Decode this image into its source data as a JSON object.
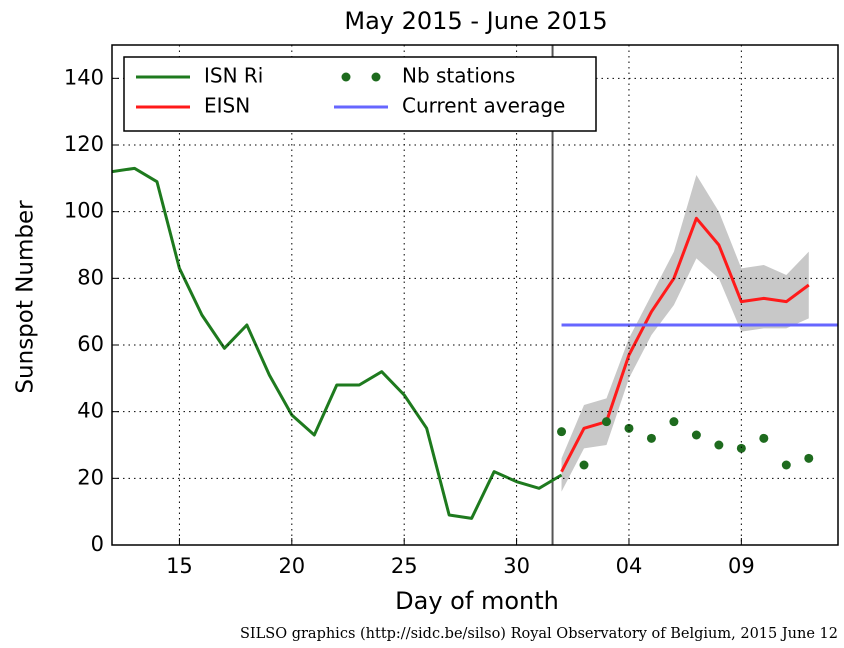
{
  "chart_data": {
    "type": "line",
    "title": "May 2015 - June 2015",
    "xlabel": "Day of month",
    "ylabel": "Sunspot Number",
    "footer": "SILSO graphics (http://sidc.be/silso) Royal Observatory of Belgium, 2015 June 12",
    "xlim": [
      12,
      44.3
    ],
    "ylim": [
      0,
      150
    ],
    "xticks": [
      15,
      20,
      25,
      30,
      {
        "value": 35,
        "label": "04"
      },
      {
        "value": 40,
        "label": "09"
      }
    ],
    "yticks": [
      0,
      20,
      40,
      60,
      80,
      100,
      120,
      140
    ],
    "grid": true,
    "legend": "upper left",
    "divider_x": 31.6,
    "series": [
      {
        "name": "ISN Ri",
        "color": "#1e7a1e",
        "style": "line",
        "x": [
          12,
          13,
          14,
          15,
          16,
          17,
          18,
          19,
          20,
          21,
          22,
          23,
          24,
          25,
          26,
          27,
          28,
          29,
          30,
          31,
          32
        ],
        "values": [
          112,
          113,
          109,
          83,
          69,
          59,
          66,
          51,
          39,
          33,
          48,
          48,
          52,
          45,
          35,
          9,
          8,
          22,
          19,
          17,
          21
        ]
      },
      {
        "name": "EISN",
        "color": "#ff1a1a",
        "style": "line",
        "x": [
          32,
          33,
          34,
          35,
          36,
          37,
          38,
          39,
          40,
          41,
          42,
          43
        ],
        "values": [
          22,
          35,
          37,
          57,
          70,
          80,
          98,
          90,
          73,
          74,
          73,
          78
        ],
        "band": {
          "color": "#c8c8c8",
          "upper": [
            26,
            42,
            44,
            62,
            75,
            88,
            111,
            100,
            83,
            84,
            81,
            88
          ],
          "lower": [
            16,
            29,
            30,
            50,
            63,
            72,
            86,
            80,
            64,
            65,
            65,
            68
          ]
        }
      },
      {
        "name": "Nb stations",
        "color": "#1e6b1e",
        "style": "dots",
        "x": [
          32,
          33,
          34,
          35,
          36,
          37,
          38,
          39,
          40,
          41,
          42,
          43
        ],
        "values": [
          34,
          24,
          37,
          35,
          32,
          37,
          33,
          30,
          29,
          32,
          24,
          26
        ]
      },
      {
        "name": "Current average",
        "color": "#6666ff",
        "style": "line",
        "x": [
          32,
          44.3
        ],
        "values": [
          66,
          66
        ]
      }
    ]
  }
}
